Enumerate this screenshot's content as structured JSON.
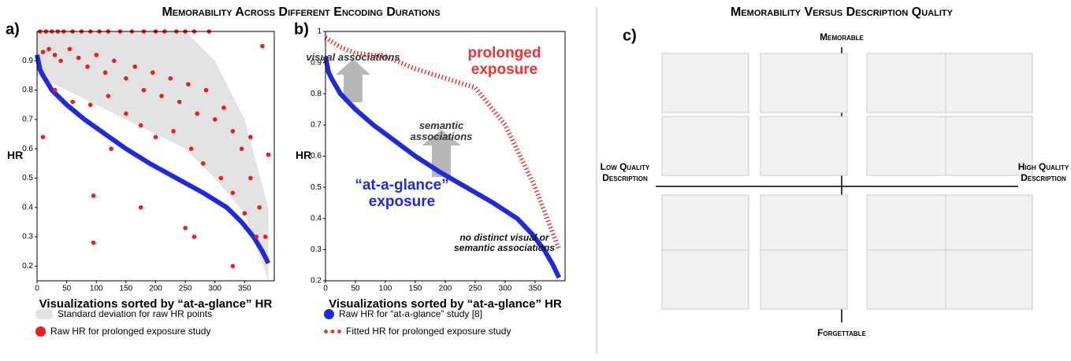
{
  "figure_title": "Memorability Across Different Encoding Durations",
  "chart_data": [
    {
      "type": "scatter",
      "panel": "a)",
      "x_label": "Visualizations sorted by “at-a-glance” HR",
      "y_label": "HR",
      "xlim": [
        0,
        400
      ],
      "xticks": [
        0,
        50,
        100,
        150,
        200,
        250,
        300,
        350
      ],
      "ylim": [
        0.15,
        1.0
      ],
      "yticks": [
        0.2,
        0.3,
        0.4,
        0.5,
        0.6,
        0.7,
        0.8,
        0.9
      ],
      "series": [
        {
          "kind": "band",
          "name": "Standard deviation for raw HR points",
          "color": "#e3e3e3",
          "x": [
            0,
            50,
            100,
            150,
            200,
            250,
            300,
            350,
            390
          ],
          "upper": [
            1,
            1,
            1,
            1,
            1,
            1,
            0.9,
            0.7,
            0.4
          ],
          "lower": [
            0.85,
            0.8,
            0.75,
            0.7,
            0.65,
            0.6,
            0.5,
            0.38,
            0.15
          ]
        },
        {
          "kind": "line",
          "color": "#1f2bd8",
          "x": [
            0,
            5,
            10,
            25,
            50,
            80,
            115,
            150,
            190,
            235,
            280,
            320,
            345,
            365,
            380,
            390
          ],
          "values": [
            0.92,
            0.87,
            0.85,
            0.8,
            0.75,
            0.7,
            0.65,
            0.6,
            0.55,
            0.5,
            0.45,
            0.4,
            0.35,
            0.3,
            0.25,
            0.21
          ]
        },
        {
          "kind": "points",
          "name": "Raw HR for prolonged exposure study",
          "color": "#ee1c1c",
          "x": [
            5,
            15,
            25,
            35,
            45,
            60,
            75,
            90,
            105,
            120,
            140,
            160,
            180,
            200,
            215,
            235,
            250,
            265,
            290,
            10,
            20,
            30,
            40,
            55,
            70,
            85,
            100,
            115,
            130,
            150,
            165,
            180,
            195,
            210,
            225,
            240,
            255,
            270,
            285,
            300,
            315,
            330,
            345,
            360,
            375,
            385,
            30,
            60,
            90,
            120,
            150,
            175,
            200,
            230,
            260,
            280,
            310,
            330,
            350,
            370,
            10,
            95,
            95,
            175,
            125,
            250,
            265,
            330,
            380,
            390,
            360
          ],
          "values": [
            1,
            1,
            1,
            1,
            1,
            1,
            1,
            1,
            1,
            1,
            1,
            1,
            1,
            1,
            1,
            1,
            1,
            1,
            1,
            0.93,
            0.94,
            0.92,
            0.9,
            0.94,
            0.91,
            0.88,
            0.92,
            0.86,
            0.9,
            0.84,
            0.88,
            0.8,
            0.86,
            0.78,
            0.84,
            0.76,
            0.82,
            0.72,
            0.8,
            0.7,
            0.74,
            0.66,
            0.6,
            0.5,
            0.4,
            0.3,
            0.8,
            0.76,
            0.75,
            0.78,
            0.72,
            0.68,
            0.64,
            0.66,
            0.6,
            0.55,
            0.5,
            0.45,
            0.38,
            0.3,
            0.64,
            0.44,
            0.28,
            0.4,
            0.6,
            0.33,
            0.3,
            0.2,
            0.95,
            0.58,
            0.64
          ]
        }
      ]
    },
    {
      "type": "scatter",
      "panel": "b)",
      "x_label": "Visualizations sorted by “at-a-glance” HR",
      "y_label": "HR",
      "xlim": [
        0,
        400
      ],
      "xticks": [
        0,
        50,
        100,
        150,
        200,
        250,
        300,
        350
      ],
      "ylim": [
        0.2,
        1.0
      ],
      "yticks": [
        0.2,
        0.3,
        0.4,
        0.5,
        0.6,
        0.7,
        0.8,
        0.9,
        1
      ],
      "annotations": [
        "visual associations",
        "semantic associations",
        "prolonged exposure",
        "“at-a-glance” exposure",
        "no distinct visual or semantic associations"
      ],
      "series": [
        {
          "kind": "line",
          "name": "Raw HR for “at-a-glance” study [8]",
          "color": "#1f2bd8",
          "x": [
            0,
            5,
            10,
            25,
            50,
            80,
            115,
            150,
            190,
            235,
            280,
            320,
            345,
            365,
            380,
            390
          ],
          "values": [
            0.92,
            0.87,
            0.85,
            0.8,
            0.75,
            0.7,
            0.65,
            0.6,
            0.55,
            0.5,
            0.45,
            0.4,
            0.35,
            0.3,
            0.25,
            0.21
          ]
        },
        {
          "kind": "dotted",
          "name": "Fitted HR for prolonged exposure study",
          "color": "#e33",
          "x": [
            0,
            25,
            50,
            100,
            150,
            200,
            250,
            300,
            350,
            390
          ],
          "values": [
            0.98,
            0.95,
            0.93,
            0.92,
            0.88,
            0.85,
            0.82,
            0.7,
            0.5,
            0.3
          ]
        }
      ]
    }
  ],
  "diagram": {
    "title": "Memorability Versus Description Quality",
    "panel": "c)",
    "top": "Memorable",
    "bottom": "Forgettable",
    "left": "Low Quality Description",
    "right": "High Quality Description"
  }
}
